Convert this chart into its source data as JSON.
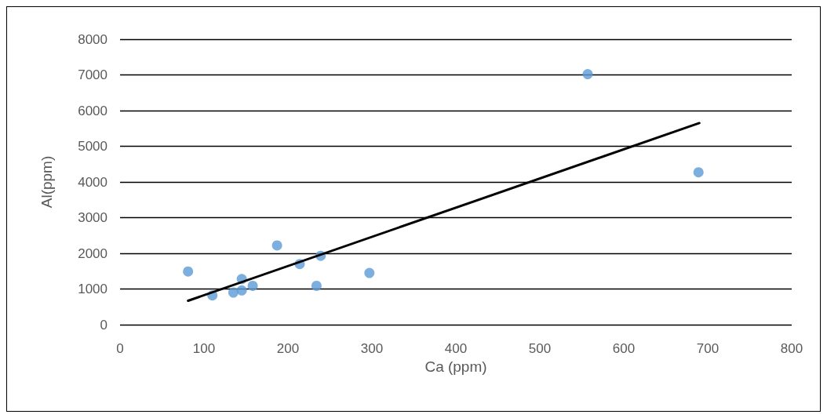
{
  "chart_data": {
    "type": "scatter",
    "xlabel": "Ca (ppm)",
    "ylabel": "Al(ppm)",
    "xlim": [
      0,
      800
    ],
    "xticks": [
      0,
      100,
      200,
      300,
      400,
      500,
      600,
      700,
      800
    ],
    "ylim": [
      0,
      8000
    ],
    "yticks": [
      0,
      1000,
      2000,
      3000,
      4000,
      5000,
      6000,
      7000,
      8000
    ],
    "grid": "y",
    "marker": "circle",
    "series": [
      {
        "color": "#5b9bd5",
        "x": [
          81,
          110,
          135,
          145,
          145,
          158,
          187,
          214,
          239,
          234,
          297,
          557,
          689
        ],
        "values": [
          1490,
          820,
          900,
          960,
          1280,
          1090,
          2220,
          1700,
          1930,
          1090,
          1450,
          7020,
          4270
        ]
      },
      {
        "type": "line",
        "color": "#000000",
        "marker": "none",
        "line_style": "solid",
        "x": [
          81,
          690
        ],
        "values": [
          670,
          5650
        ]
      }
    ]
  }
}
